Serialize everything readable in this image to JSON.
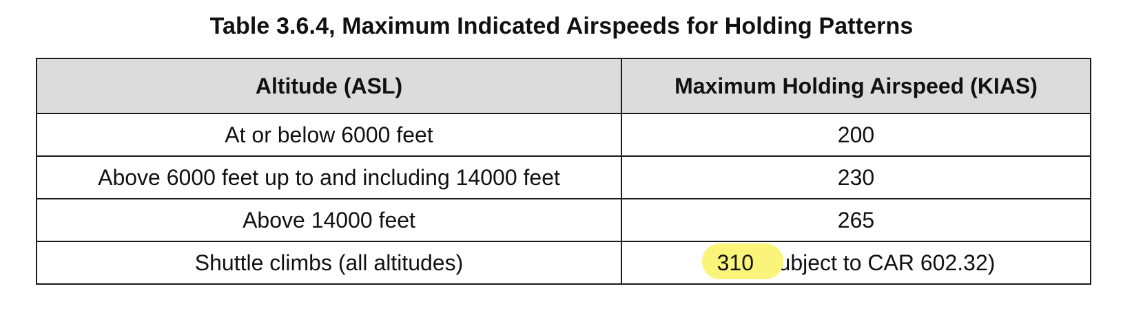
{
  "title": "Table 3.6.4, Maximum Indicated Airspeeds for Holding Patterns",
  "table": {
    "headers": [
      "Altitude (ASL)",
      "Maximum Holding Airspeed (KIAS)"
    ],
    "rows": [
      [
        "At or below 6000 feet",
        "200"
      ],
      [
        "Above 6000 feet up to and including 14000 feet",
        "230"
      ],
      [
        "Above 14000 feet",
        "265"
      ],
      [
        "Shuttle climbs (all altitudes)",
        "310 (subject to CAR 602.32)"
      ]
    ],
    "highlighted_value": "310",
    "highlighted_suffix": " (subject to CAR 602.32)"
  },
  "colors": {
    "header_background": "#dcdcdc",
    "highlight": "#fbf47a",
    "border": "#1a1a1a"
  }
}
